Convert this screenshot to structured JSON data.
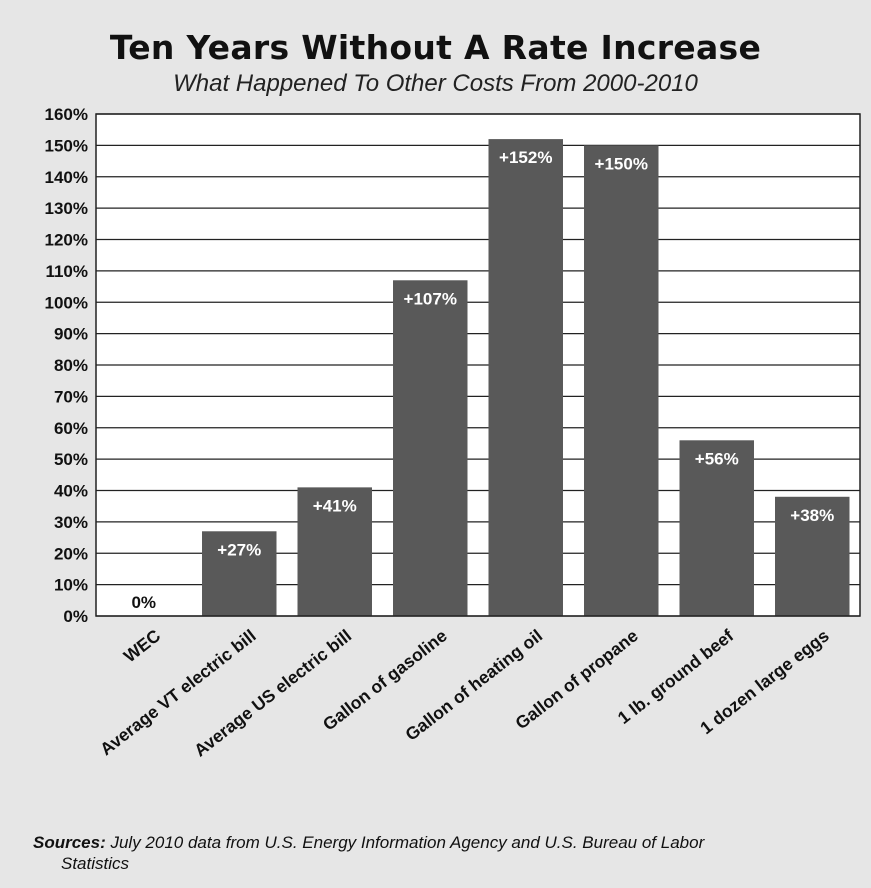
{
  "chart_data": {
    "type": "bar",
    "title": "Ten Years Without A Rate Increase",
    "subtitle": "What Happened To Other Costs From 2000-2010",
    "categories": [
      "WEC",
      "Average VT electric bill",
      "Average US electric bill",
      "Gallon of gasoline",
      "Gallon of heating oil",
      "Gallon of propane",
      "1 lb. ground beef",
      "1 dozen large eggs"
    ],
    "values": [
      0,
      27,
      41,
      107,
      152,
      150,
      56,
      38
    ],
    "data_labels": [
      "0%",
      "+27%",
      "+41%",
      "+107%",
      "+152%",
      "+150%",
      "+56%",
      "+38%"
    ],
    "ylim": [
      0,
      160
    ],
    "yticks": [
      "0%",
      "10%",
      "20%",
      "30%",
      "40%",
      "50%",
      "60%",
      "70%",
      "80%",
      "90%",
      "100%",
      "110%",
      "120%",
      "130%",
      "140%",
      "150%",
      "160%"
    ],
    "grid": true,
    "bar_color": "#595959",
    "background_color": "#e6e6e6",
    "plot_background_color": "#ffffff"
  },
  "sources": {
    "label": "Sources:",
    "line1": " July 2010 data from U.S. Energy Information Agency and U.S. Bureau of Labor",
    "line2": "Statistics"
  }
}
